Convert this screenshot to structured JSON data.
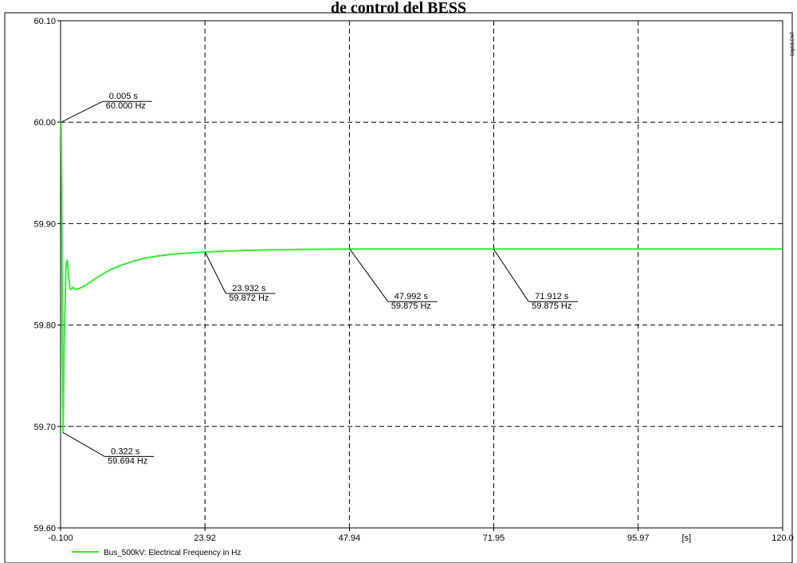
{
  "chart_data": {
    "type": "line",
    "title": "de control del BESS",
    "xlabel": "[s]",
    "ylabel": "",
    "xlim": [
      -0.1,
      120.0
    ],
    "ylim": [
      59.6,
      60.1
    ],
    "x_tick_labels": [
      "-0.100",
      "23.92",
      "47.94",
      "71.95",
      "95.97",
      "120.0"
    ],
    "x_ticks": [
      -0.1,
      23.92,
      47.94,
      71.95,
      95.97,
      120.0
    ],
    "y_tick_labels": [
      "59.60",
      "59.70",
      "59.80",
      "59.90",
      "60.00",
      "60.10"
    ],
    "y_ticks": [
      59.6,
      59.7,
      59.8,
      59.9,
      60.0,
      60.1
    ],
    "grid": true,
    "legend_position": "bottom-left",
    "series": [
      {
        "name": "Bus_500kV: Electrical Frequency in Hz",
        "color": "#33ee33",
        "x": [
          -0.1,
          0.005,
          0.1,
          0.2,
          0.322,
          0.5,
          0.8,
          1.0,
          1.2,
          1.5,
          2.0,
          2.5,
          3.0,
          4.0,
          5.0,
          6.0,
          8.0,
          10.0,
          12.0,
          14.0,
          16.0,
          18.0,
          20.0,
          23.932,
          28.0,
          32.0,
          36.0,
          40.0,
          47.992,
          55.0,
          60.0,
          71.912,
          80.0,
          90.0,
          100.0,
          110.0,
          120.0
        ],
        "y": [
          60.0,
          60.0,
          59.93,
          59.78,
          59.694,
          59.78,
          59.86,
          59.864,
          59.85,
          59.835,
          59.837,
          59.835,
          59.836,
          59.839,
          59.843,
          59.847,
          59.854,
          59.859,
          59.863,
          59.866,
          59.868,
          59.8695,
          59.8705,
          59.872,
          59.873,
          59.8738,
          59.8743,
          59.8746,
          59.875,
          59.875,
          59.875,
          59.875,
          59.875,
          59.875,
          59.875,
          59.875,
          59.875
        ]
      }
    ],
    "annotations": [
      {
        "x": 0.005,
        "y": 60.0,
        "line1": "0.005 s",
        "line2": "60.000 Hz"
      },
      {
        "x": 0.322,
        "y": 59.694,
        "line1": "0.322 s",
        "line2": "59.694 Hz"
      },
      {
        "x": 23.932,
        "y": 59.872,
        "line1": "23.932 s",
        "line2": "59.872 Hz"
      },
      {
        "x": 47.992,
        "y": 59.875,
        "line1": "47.992 s",
        "line2": "59.875 Hz"
      },
      {
        "x": 71.912,
        "y": 59.875,
        "line1": "71.912 s",
        "line2": "59.875 Hz"
      }
    ],
    "side_label": "DIgSILENT"
  }
}
